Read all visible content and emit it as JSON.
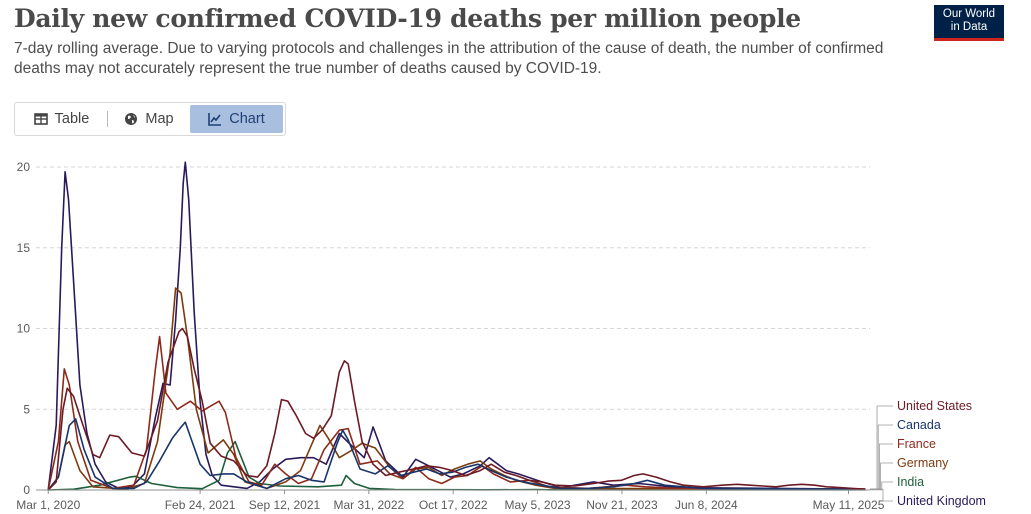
{
  "header": {
    "title": "Daily new confirmed COVID-19 deaths per million people",
    "subtitle": "7-day rolling average. Due to varying protocols and challenges in the attribution of the cause of death, the number of confirmed deaths may not accurately represent the true number of deaths caused by COVID-19.",
    "logo_line1": "Our World",
    "logo_line2": "in Data"
  },
  "tabs": [
    {
      "label": "Table",
      "icon": "table-icon",
      "active": false
    },
    {
      "label": "Map",
      "icon": "globe-icon",
      "active": false
    },
    {
      "label": "Chart",
      "icon": "line-chart-icon",
      "active": true
    }
  ],
  "chart_data": {
    "type": "line",
    "title": "Daily new confirmed COVID-19 deaths per million people",
    "ylim": [
      0,
      20
    ],
    "yticks": [
      0,
      5,
      10,
      15,
      20
    ],
    "xlim": [
      "2020-02-01",
      "2025-07-01"
    ],
    "xticks": [
      "Mar 1, 2020",
      "Feb 24, 2021",
      "Sep 12, 2021",
      "Mar 31, 2022",
      "Oct 17, 2022",
      "May 5, 2023",
      "Nov 21, 2023",
      "Jun 8, 2024",
      "May 11, 2025"
    ],
    "xtick_dates": [
      "2020-03-01",
      "2021-02-24",
      "2021-09-12",
      "2022-03-31",
      "2022-10-17",
      "2023-05-05",
      "2023-11-21",
      "2024-06-08",
      "2025-05-11"
    ],
    "grid": "horizontal dashed",
    "legend_position": "right",
    "series": [
      {
        "name": "United States",
        "color": "#6d1a25",
        "x": [
          "2020-03-01",
          "2020-03-20",
          "2020-04-05",
          "2020-04-15",
          "2020-04-30",
          "2020-05-20",
          "2020-06-15",
          "2020-07-01",
          "2020-07-25",
          "2020-08-15",
          "2020-09-15",
          "2020-10-15",
          "2020-11-15",
          "2020-12-10",
          "2021-01-05",
          "2021-01-13",
          "2021-01-25",
          "2021-02-10",
          "2021-03-01",
          "2021-03-20",
          "2021-04-15",
          "2021-05-15",
          "2021-06-15",
          "2021-07-10",
          "2021-08-01",
          "2021-08-20",
          "2021-09-05",
          "2021-09-20",
          "2021-10-10",
          "2021-11-01",
          "2021-11-20",
          "2021-12-10",
          "2022-01-01",
          "2022-01-20",
          "2022-02-01",
          "2022-02-10",
          "2022-02-25",
          "2022-03-15",
          "2022-04-10",
          "2022-05-10",
          "2022-06-10",
          "2022-07-15",
          "2022-08-15",
          "2022-09-15",
          "2022-10-15",
          "2022-11-15",
          "2022-12-20",
          "2023-01-15",
          "2023-02-15",
          "2023-03-15",
          "2023-04-15",
          "2023-05-15",
          "2023-06-15",
          "2023-08-01",
          "2023-09-15",
          "2023-10-20",
          "2023-11-20",
          "2023-12-20",
          "2024-01-10",
          "2024-02-10",
          "2024-03-15",
          "2024-04-15",
          "2024-06-01",
          "2024-07-15",
          "2024-08-20",
          "2024-09-20",
          "2024-10-20",
          "2024-11-20",
          "2024-12-20",
          "2025-01-20",
          "2025-02-20",
          "2025-03-20",
          "2025-04-20",
          "2025-05-20",
          "2025-06-20"
        ],
        "values": [
          0,
          0.5,
          5,
          6.3,
          5.8,
          4.2,
          2.2,
          2.0,
          3.4,
          3.3,
          2.3,
          2.1,
          4.3,
          7.9,
          9.8,
          10.0,
          9.5,
          7.5,
          5.5,
          2.9,
          2.1,
          1.8,
          0.9,
          0.8,
          1.5,
          3.5,
          5.6,
          5.5,
          4.6,
          3.5,
          3.2,
          3.7,
          4.6,
          7.3,
          8.0,
          7.8,
          5.5,
          3.0,
          1.6,
          0.9,
          1.1,
          1.3,
          1.5,
          1.4,
          1.2,
          0.9,
          1.2,
          1.6,
          1.1,
          0.9,
          0.6,
          0.5,
          0.3,
          0.25,
          0.4,
          0.55,
          0.6,
          0.9,
          1.0,
          0.8,
          0.5,
          0.3,
          0.2,
          0.3,
          0.35,
          0.3,
          0.25,
          0.2,
          0.3,
          0.35,
          0.3,
          0.2,
          0.15,
          0.1,
          0.05
        ]
      },
      {
        "name": "Canada",
        "color": "#19366b",
        "x": [
          "2020-03-01",
          "2020-03-25",
          "2020-04-20",
          "2020-05-05",
          "2020-05-25",
          "2020-06-20",
          "2020-08-01",
          "2020-09-20",
          "2020-10-20",
          "2020-11-20",
          "2020-12-20",
          "2021-01-10",
          "2021-01-20",
          "2021-02-05",
          "2021-02-24",
          "2021-03-20",
          "2021-04-20",
          "2021-05-15",
          "2021-06-15",
          "2021-08-01",
          "2021-09-15",
          "2021-10-15",
          "2021-11-15",
          "2021-12-15",
          "2022-01-15",
          "2022-01-28",
          "2022-02-10",
          "2022-03-10",
          "2022-04-15",
          "2022-05-15",
          "2022-06-15",
          "2022-07-15",
          "2022-08-15",
          "2022-09-15",
          "2022-10-15",
          "2022-11-15",
          "2022-12-15",
          "2023-01-15",
          "2023-02-20",
          "2023-04-01",
          "2023-05-15",
          "2023-07-01",
          "2023-09-01",
          "2023-11-01",
          "2023-12-20",
          "2024-01-20",
          "2024-03-01",
          "2024-06-01",
          "2025-06-20"
        ],
        "values": [
          0,
          0.8,
          4.0,
          4.4,
          2.5,
          0.8,
          0.1,
          0.1,
          0.5,
          1.8,
          3.2,
          3.9,
          4.2,
          3.0,
          1.6,
          0.9,
          1.0,
          1.0,
          0.5,
          0.1,
          0.7,
          0.9,
          0.6,
          0.5,
          2.9,
          3.7,
          3.1,
          1.3,
          1.0,
          1.5,
          0.9,
          1.1,
          1.3,
          1.0,
          1.1,
          1.4,
          1.6,
          1.2,
          0.8,
          0.5,
          0.3,
          0.1,
          0.1,
          0.2,
          0.4,
          0.6,
          0.3,
          0.1,
          0.05
        ]
      },
      {
        "name": "France",
        "color": "#8c2b1b",
        "x": [
          "2020-03-01",
          "2020-03-25",
          "2020-04-08",
          "2020-04-20",
          "2020-05-10",
          "2020-06-10",
          "2020-08-01",
          "2020-09-20",
          "2020-10-20",
          "2020-11-10",
          "2020-11-20",
          "2020-12-05",
          "2021-01-01",
          "2021-02-01",
          "2021-03-01",
          "2021-04-10",
          "2021-04-25",
          "2021-05-20",
          "2021-06-20",
          "2021-07-20",
          "2021-08-20",
          "2021-09-15",
          "2021-10-15",
          "2021-11-15",
          "2021-12-15",
          "2022-01-20",
          "2022-02-10",
          "2022-03-10",
          "2022-04-20",
          "2022-05-20",
          "2022-06-20",
          "2022-07-20",
          "2022-08-20",
          "2022-09-20",
          "2022-10-20",
          "2022-11-20",
          "2022-12-25",
          "2023-01-20",
          "2023-03-01",
          "2023-04-15",
          "2023-06-01",
          "2023-09-01",
          "2023-12-01",
          "2024-01-15",
          "2024-04-01",
          "2025-06-20"
        ],
        "values": [
          0,
          3.0,
          7.5,
          6.5,
          3.0,
          0.6,
          0.1,
          0.3,
          2.5,
          7.5,
          9.5,
          6.0,
          5.0,
          5.5,
          4.9,
          5.5,
          4.8,
          2.0,
          0.5,
          0.3,
          1.6,
          1.0,
          0.4,
          0.7,
          2.5,
          3.7,
          3.8,
          1.6,
          1.8,
          1.0,
          0.7,
          1.4,
          0.7,
          0.4,
          0.8,
          0.9,
          1.5,
          1.0,
          0.5,
          0.6,
          0.2,
          0.1,
          0.3,
          0.2,
          0.1,
          0.05
        ]
      },
      {
        "name": "Germany",
        "color": "#7d3c10",
        "x": [
          "2020-03-01",
          "2020-03-25",
          "2020-04-10",
          "2020-04-20",
          "2020-05-15",
          "2020-06-15",
          "2020-09-01",
          "2020-10-15",
          "2020-11-15",
          "2020-12-15",
          "2020-12-28",
          "2021-01-10",
          "2021-01-25",
          "2021-02-15",
          "2021-03-15",
          "2021-04-20",
          "2021-05-15",
          "2021-06-10",
          "2021-08-01",
          "2021-09-15",
          "2021-10-20",
          "2021-11-15",
          "2021-12-05",
          "2021-12-25",
          "2022-01-20",
          "2022-02-15",
          "2022-03-15",
          "2022-04-15",
          "2022-05-20",
          "2022-06-20",
          "2022-07-20",
          "2022-08-20",
          "2022-09-20",
          "2022-10-20",
          "2022-11-20",
          "2022-12-20",
          "2023-01-15",
          "2023-02-15",
          "2023-03-15",
          "2023-05-01",
          "2023-06-15",
          "2025-06-20"
        ],
        "values": [
          0,
          0.8,
          2.8,
          3.0,
          1.2,
          0.2,
          0.05,
          0.4,
          3.0,
          8.5,
          12.5,
          12.2,
          9.5,
          5.0,
          2.3,
          3.1,
          2.2,
          0.5,
          0.1,
          0.5,
          1.2,
          2.8,
          4.0,
          3.2,
          2.0,
          2.4,
          2.9,
          2.6,
          1.4,
          0.7,
          1.3,
          1.4,
          0.9,
          1.3,
          1.6,
          1.8,
          1.3,
          0.9,
          0.6,
          0.3,
          0.1,
          0.05
        ]
      },
      {
        "name": "India",
        "color": "#1e5f3c",
        "x": [
          "2020-03-01",
          "2020-05-01",
          "2020-07-01",
          "2020-09-10",
          "2020-09-25",
          "2020-11-01",
          "2021-01-01",
          "2021-03-01",
          "2021-04-10",
          "2021-04-30",
          "2021-05-18",
          "2021-06-05",
          "2021-06-20",
          "2021-07-15",
          "2021-09-01",
          "2021-12-01",
          "2022-01-25",
          "2022-02-05",
          "2022-02-25",
          "2022-04-01",
          "2022-06-01",
          "2023-01-01",
          "2023-04-01",
          "2023-05-01",
          "2023-06-01",
          "2025-06-20"
        ],
        "values": [
          0,
          0.05,
          0.3,
          0.8,
          0.85,
          0.4,
          0.15,
          0.08,
          0.6,
          2.3,
          3.0,
          1.8,
          0.8,
          0.4,
          0.25,
          0.2,
          0.3,
          0.9,
          0.4,
          0.1,
          0.03,
          0.01,
          0.02,
          0.03,
          0.01,
          0.01
        ]
      },
      {
        "name": "United Kingdom",
        "color": "#2a1a5c",
        "x": [
          "2020-03-01",
          "2020-03-20",
          "2020-04-02",
          "2020-04-10",
          "2020-04-18",
          "2020-05-01",
          "2020-05-15",
          "2020-06-01",
          "2020-06-20",
          "2020-07-15",
          "2020-08-15",
          "2020-09-15",
          "2020-10-15",
          "2020-11-10",
          "2020-11-28",
          "2020-12-15",
          "2020-12-28",
          "2021-01-08",
          "2021-01-15",
          "2021-01-20",
          "2021-01-28",
          "2021-02-10",
          "2021-02-24",
          "2021-03-10",
          "2021-03-25",
          "2021-04-15",
          "2021-06-15",
          "2021-07-15",
          "2021-08-15",
          "2021-09-15",
          "2021-10-20",
          "2021-11-20",
          "2021-12-20",
          "2022-01-20",
          "2022-02-20",
          "2022-03-20",
          "2022-04-10",
          "2022-05-10",
          "2022-06-20",
          "2022-07-20",
          "2022-08-20",
          "2022-10-10",
          "2022-11-10",
          "2022-12-20",
          "2023-01-10",
          "2023-02-20",
          "2023-03-20",
          "2023-05-15",
          "2023-07-01",
          "2023-09-15",
          "2023-11-01",
          "2024-01-01",
          "2024-04-01",
          "2025-06-20"
        ],
        "values": [
          0,
          4.0,
          15.0,
          19.7,
          18.0,
          12.5,
          6.5,
          3.5,
          1.6,
          0.5,
          0.1,
          0.2,
          1.0,
          4.5,
          6.6,
          6.5,
          10.5,
          15.0,
          19.0,
          20.3,
          18.0,
          11.0,
          5.5,
          2.2,
          0.9,
          0.3,
          0.1,
          0.5,
          1.3,
          1.9,
          2.0,
          2.0,
          1.6,
          3.5,
          2.7,
          2.0,
          3.9,
          1.8,
          0.8,
          1.9,
          1.5,
          0.8,
          1.0,
          1.5,
          2.0,
          1.2,
          1.0,
          0.5,
          0.15,
          0.5,
          0.3,
          0.4,
          0.15,
          0.05
        ]
      }
    ]
  }
}
